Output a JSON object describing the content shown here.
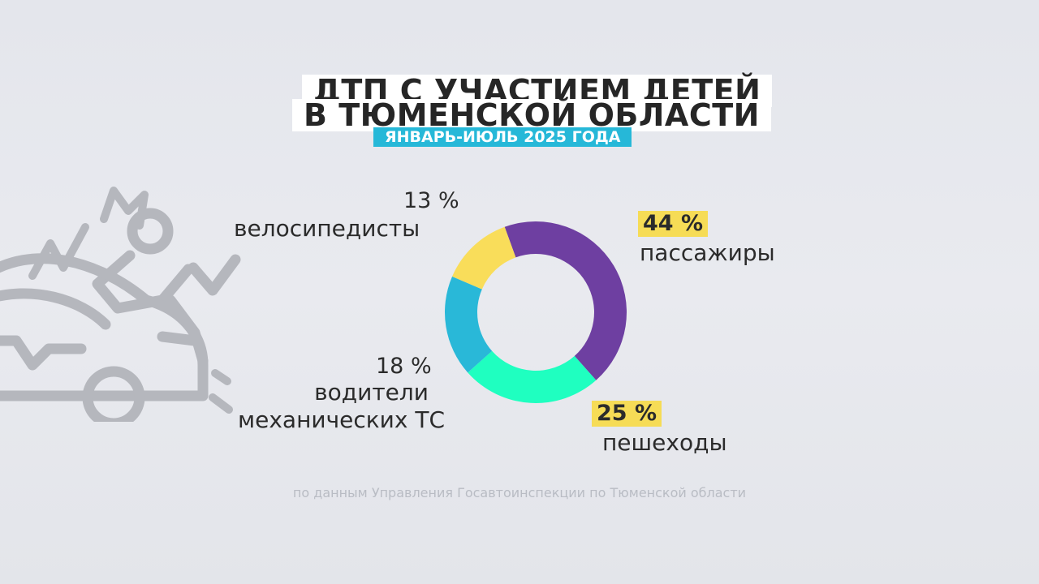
{
  "title": {
    "line1": "ДТП С УЧАСТИЕМ ДЕТЕЙ",
    "line2": "В ТЮМЕНСКОЙ ОБЛАСТИ",
    "subtitle": "ЯНВАРЬ-ИЮЛЬ 2025 ГОДА"
  },
  "source": "по данным Управления Госавтоинспекции по Тюменской области",
  "illustration_icon": "car-crash-icon",
  "chart_data": {
    "type": "pie",
    "style": "donut",
    "title": "ДТП С УЧАСТИЕМ ДЕТЕЙ В ТЮМЕНСКОЙ ОБЛАСТИ",
    "subtitle": "ЯНВАРЬ-ИЮЛЬ 2025 ГОДА",
    "slices": [
      {
        "label": "пассажиры",
        "value": 44,
        "value_label": "44 %",
        "color": "#6e3fa1"
      },
      {
        "label": "пешеходы",
        "value": 25,
        "value_label": "25 %",
        "color": "#1fffc0"
      },
      {
        "label": "водители механических ТС",
        "label_line1": "водители",
        "label_line2": "механических ТС",
        "value": 18,
        "value_label": "18 %",
        "color": "#29b8d8"
      },
      {
        "label": "велосипедисты",
        "value": 13,
        "value_label": "13 %",
        "color": "#f9dd5a"
      }
    ]
  }
}
